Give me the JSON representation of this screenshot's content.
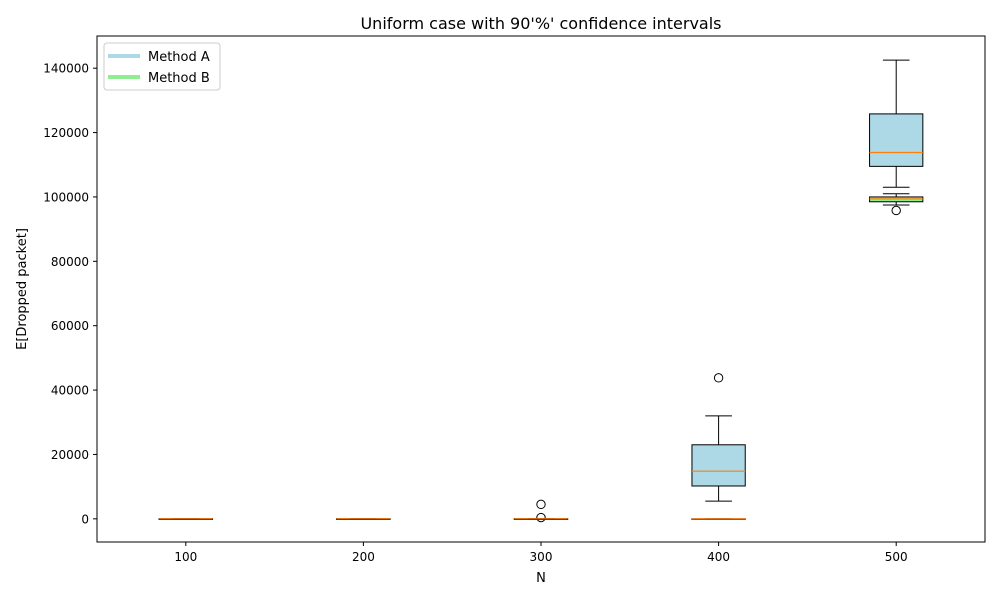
{
  "chart_data": {
    "type": "box",
    "title": "Uniform case with 90'%' confidence intervals",
    "xlabel": "N",
    "ylabel": "E[Dropped packet]",
    "categories": [
      "100",
      "200",
      "300",
      "400",
      "500"
    ],
    "xlim": [
      50,
      550
    ],
    "ylim": [
      -7200,
      150000
    ],
    "yticks": [
      0,
      20000,
      40000,
      60000,
      80000,
      100000,
      120000,
      140000
    ],
    "ytick_labels": [
      "0",
      "20000",
      "40000",
      "60000",
      "80000",
      "100000",
      "120000",
      "140000"
    ],
    "legend": {
      "placement": "top-left",
      "entries": [
        {
          "label": "Method A",
          "color": "#add8e6"
        },
        {
          "label": "Method B",
          "color": "#90ee90"
        }
      ]
    },
    "series": [
      {
        "name": "Method A",
        "color": "#add8e6",
        "boxes": [
          {
            "x": 100,
            "whisker_low": 0,
            "q1": 0,
            "median": 0,
            "q3": 0,
            "whisker_high": 0,
            "outliers": []
          },
          {
            "x": 200,
            "whisker_low": 0,
            "q1": 0,
            "median": 0,
            "q3": 0,
            "whisker_high": 0,
            "outliers": []
          },
          {
            "x": 300,
            "whisker_low": 0,
            "q1": 0,
            "median": 0,
            "q3": 0,
            "whisker_high": 0,
            "outliers": [
              4500,
              400
            ]
          },
          {
            "x": 400,
            "whisker_low": 5500,
            "q1": 10200,
            "median": 14800,
            "q3": 23000,
            "whisker_high": 32000,
            "outliers": [
              43800
            ]
          },
          {
            "x": 500,
            "whisker_low": 103000,
            "q1": 109500,
            "median": 113800,
            "q3": 125800,
            "whisker_high": 142500,
            "outliers": []
          }
        ]
      },
      {
        "name": "Method B",
        "color": "#90ee90",
        "boxes": [
          {
            "x": 100,
            "whisker_low": 0,
            "q1": 0,
            "median": 0,
            "q3": 0,
            "whisker_high": 0,
            "outliers": []
          },
          {
            "x": 200,
            "whisker_low": 0,
            "q1": 0,
            "median": 0,
            "q3": 0,
            "whisker_high": 0,
            "outliers": []
          },
          {
            "x": 300,
            "whisker_low": 0,
            "q1": 0,
            "median": 0,
            "q3": 0,
            "whisker_high": 0,
            "outliers": []
          },
          {
            "x": 400,
            "whisker_low": 0,
            "q1": 0,
            "median": 0,
            "q3": 0,
            "whisker_high": 0,
            "outliers": []
          },
          {
            "x": 500,
            "whisker_low": 97500,
            "q1": 98500,
            "median": 99400,
            "q3": 100000,
            "whisker_high": 101000,
            "outliers": [
              95800
            ]
          }
        ]
      }
    ],
    "median_color": "#ff7f0e",
    "grid": false
  }
}
